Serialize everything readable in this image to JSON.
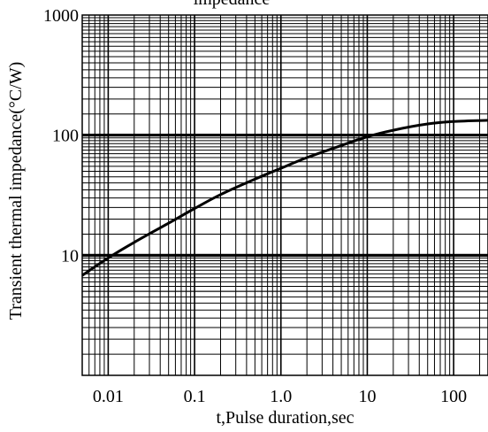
{
  "chart_data": {
    "type": "line",
    "title": "impedance",
    "xlabel": "t,Pulse duration,sec",
    "ylabel": "Transient thermal impedance(°C/W)",
    "x_scale": "log",
    "y_scale": "log",
    "xlim": [
      0.005,
      250
    ],
    "ylim": [
      1,
      1000
    ],
    "x_tick_labels": [
      "0.01",
      "0.1",
      "1.0",
      "10",
      "100"
    ],
    "x_tick_values": [
      0.01,
      0.1,
      1,
      10,
      100
    ],
    "y_tick_labels": [
      "10",
      "100",
      "1000"
    ],
    "y_tick_values": [
      10,
      100,
      1000
    ],
    "grid": true,
    "series": [
      {
        "x": [
          0.005,
          0.01,
          0.02,
          0.05,
          0.1,
          0.2,
          0.5,
          1,
          2,
          5,
          10,
          20,
          50,
          100,
          250
        ],
        "values": [
          6.8,
          9.5,
          12.8,
          18.5,
          24.5,
          32,
          43,
          53,
          65,
          82,
          97,
          110,
          124,
          130,
          133
        ]
      }
    ]
  }
}
